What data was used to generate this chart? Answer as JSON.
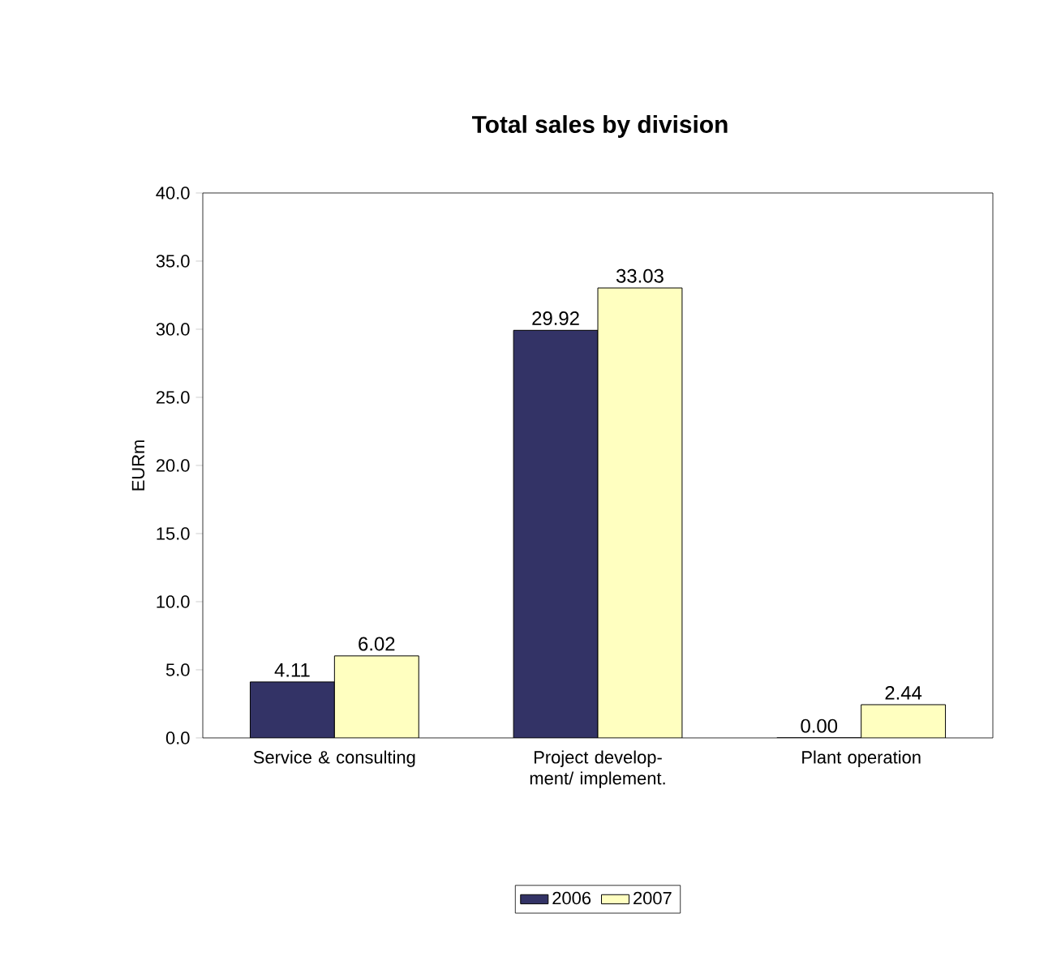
{
  "chart_data": {
    "type": "bar",
    "title": "Total sales by division",
    "ylabel": "EURm",
    "categories": [
      "Service & consulting",
      "Project develop- ment/ implement.",
      "Plant operation"
    ],
    "series": [
      {
        "name": "2006",
        "color": "#333366",
        "values": [
          4.11,
          29.92,
          0.0
        ],
        "value_labels": [
          "4.11",
          "29.92",
          "0.00"
        ]
      },
      {
        "name": "2007",
        "color": "#ffffc0",
        "values": [
          6.02,
          33.03,
          2.44
        ],
        "value_labels": [
          "6.02",
          "33.03",
          "2.44"
        ]
      }
    ],
    "ylim": [
      0,
      40
    ],
    "yticks": [
      {
        "value": 0,
        "label": "0.0"
      },
      {
        "value": 5,
        "label": "5.0"
      },
      {
        "value": 10,
        "label": "10.0"
      },
      {
        "value": 15,
        "label": "15.0"
      },
      {
        "value": 20,
        "label": "20.0"
      },
      {
        "value": 25,
        "label": "25.0"
      },
      {
        "value": 30,
        "label": "30.0"
      },
      {
        "value": 35,
        "label": "35.0"
      },
      {
        "value": 40,
        "label": "40.0"
      }
    ],
    "grid": false,
    "legend": "bottom"
  }
}
